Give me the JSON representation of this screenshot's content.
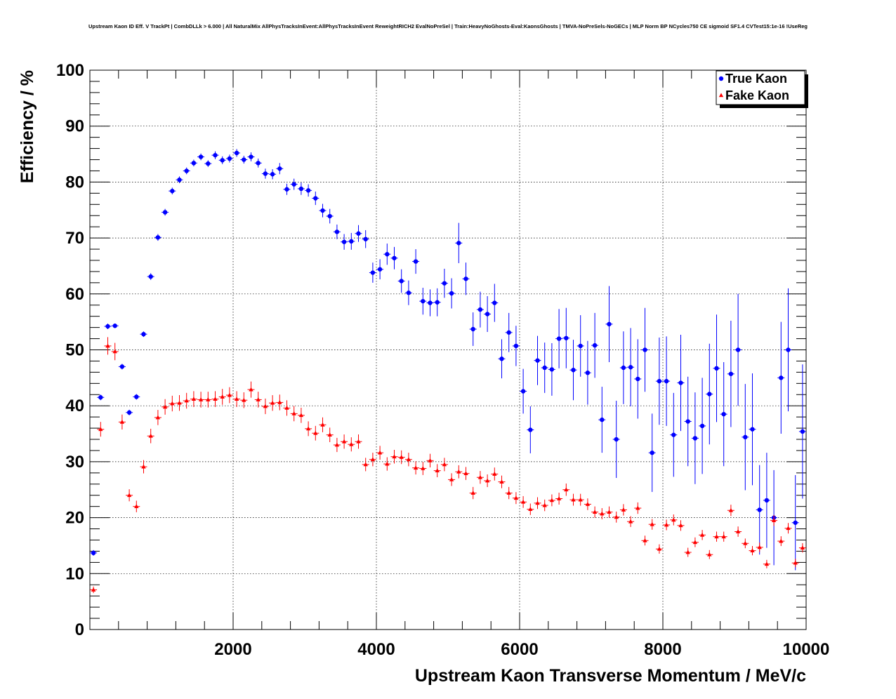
{
  "chart_data": {
    "type": "scatter",
    "title": "Upstream Kaon ID Eff. V TrackPt | CombDLLk > 6.000 | All NaturalMix AllPhysTracksInEvent:AllPhysTracksInEvent ReweightRICH2 EvalNoPreSel | Train:HeavyNoGhosts-Eval:KaonsGhosts | TMVA-NoPreSels-NoGECs | MLP Norm BP NCycles750 CE sigmoid SF1.4 CVTest15:1e-16 !UseReg",
    "xlabel": "Upstream Kaon Transverse Momentum / MeV/c",
    "ylabel": "Efficiency / %",
    "xlim": [
      0,
      10000
    ],
    "ylim": [
      0,
      100
    ],
    "x_ticks": [
      "2000",
      "4000",
      "6000",
      "8000",
      "10000"
    ],
    "y_ticks": [
      "0",
      "10",
      "20",
      "30",
      "40",
      "50",
      "60",
      "70",
      "80",
      "90",
      "100"
    ],
    "grid": true,
    "legend_position": "top-right",
    "series": [
      {
        "name": "True Kaon",
        "color": "#0000ff",
        "marker": "circle",
        "x": [
          50,
          150,
          250,
          350,
          450,
          550,
          650,
          750,
          850,
          950,
          1050,
          1150,
          1250,
          1350,
          1450,
          1550,
          1650,
          1750,
          1850,
          1950,
          2050,
          2150,
          2250,
          2350,
          2450,
          2550,
          2650,
          2750,
          2850,
          2950,
          3050,
          3150,
          3250,
          3350,
          3450,
          3550,
          3650,
          3750,
          3850,
          3950,
          4050,
          4150,
          4250,
          4350,
          4450,
          4550,
          4650,
          4750,
          4850,
          4950,
          5050,
          5150,
          5250,
          5350,
          5450,
          5550,
          5650,
          5750,
          5850,
          5950,
          6050,
          6150,
          6250,
          6350,
          6450,
          6550,
          6650,
          6750,
          6850,
          6950,
          7050,
          7150,
          7250,
          7350,
          7450,
          7550,
          7650,
          7750,
          7850,
          7950,
          8050,
          8150,
          8250,
          8350,
          8450,
          8550,
          8650,
          8750,
          8850,
          8950,
          9050,
          9150,
          9250,
          9350,
          9450,
          9550,
          9650,
          9750,
          9850,
          9950
        ],
        "y": [
          13.7,
          41.5,
          54.2,
          54.3,
          47.0,
          38.8,
          41.6,
          52.8,
          63.1,
          70.1,
          74.6,
          78.4,
          80.4,
          82.0,
          83.4,
          84.5,
          83.3,
          84.8,
          83.9,
          84.2,
          85.2,
          84.0,
          84.5,
          83.4,
          81.5,
          81.4,
          82.4,
          78.7,
          79.6,
          78.8,
          78.5,
          77.1,
          74.9,
          73.9,
          71.1,
          69.3,
          69.4,
          70.8,
          69.8,
          63.8,
          64.4,
          67.1,
          66.4,
          62.3,
          60.2,
          65.8,
          58.7,
          58.4,
          58.5,
          61.9,
          60.1,
          69.1,
          62.7,
          53.7,
          57.2,
          56.4,
          58.4,
          48.4,
          53.1,
          50.7,
          42.6,
          35.7,
          48.1,
          46.8,
          46.5,
          52.0,
          52.1,
          46.4,
          50.7,
          45.9,
          50.8,
          37.5,
          54.6,
          34.0,
          46.8,
          46.9,
          44.8,
          50.0,
          31.6,
          44.4,
          44.4,
          34.8,
          44.1,
          37.2,
          34.2,
          36.4,
          42.1,
          46.7,
          38.5,
          45.7,
          50.0,
          34.4,
          35.8,
          21.4,
          23.1,
          20.0,
          45.0,
          50.0,
          19.1,
          35.4
        ],
        "err": [
          0.5,
          0.5,
          0.5,
          0.4,
          0.5,
          0.5,
          0.5,
          0.5,
          0.6,
          0.6,
          0.6,
          0.6,
          0.6,
          0.6,
          0.6,
          0.6,
          0.6,
          0.7,
          0.7,
          0.7,
          0.7,
          0.7,
          0.8,
          0.8,
          0.9,
          0.9,
          1.0,
          1.0,
          1.0,
          1.1,
          1.1,
          1.2,
          1.2,
          1.3,
          1.3,
          1.4,
          1.5,
          1.5,
          1.6,
          1.8,
          1.8,
          1.9,
          2.0,
          2.1,
          2.2,
          2.2,
          2.4,
          2.4,
          2.5,
          2.6,
          2.7,
          3.6,
          2.9,
          3.0,
          3.2,
          3.2,
          3.4,
          3.5,
          3.5,
          3.6,
          4.0,
          4.2,
          4.4,
          4.5,
          4.7,
          5.3,
          5.4,
          5.4,
          5.5,
          5.7,
          5.8,
          5.9,
          6.8,
          6.9,
          6.5,
          7.0,
          7.1,
          7.5,
          7.0,
          7.8,
          8.0,
          7.5,
          8.6,
          8.0,
          8.2,
          8.6,
          9.0,
          9.6,
          9.3,
          9.5,
          10.0,
          9.5,
          10.0,
          8.0,
          8.5,
          8.5,
          10.0,
          11.0,
          8.5,
          12.0
        ]
      },
      {
        "name": "Fake Kaon",
        "color": "#ff0000",
        "marker": "triangle",
        "x": [
          50,
          150,
          250,
          350,
          450,
          550,
          650,
          750,
          850,
          950,
          1050,
          1150,
          1250,
          1350,
          1450,
          1550,
          1650,
          1750,
          1850,
          1950,
          2050,
          2150,
          2250,
          2350,
          2450,
          2550,
          2650,
          2750,
          2850,
          2950,
          3050,
          3150,
          3250,
          3350,
          3450,
          3550,
          3650,
          3750,
          3850,
          3950,
          4050,
          4150,
          4250,
          4350,
          4450,
          4550,
          4650,
          4750,
          4850,
          4950,
          5050,
          5150,
          5250,
          5350,
          5450,
          5550,
          5650,
          5750,
          5850,
          5950,
          6050,
          6150,
          6250,
          6350,
          6450,
          6550,
          6650,
          6750,
          6850,
          6950,
          7050,
          7150,
          7250,
          7350,
          7450,
          7550,
          7650,
          7750,
          7850,
          7950,
          8050,
          8150,
          8250,
          8350,
          8450,
          8550,
          8650,
          8750,
          8850,
          8950,
          9050,
          9150,
          9250,
          9350,
          9450,
          9550,
          9650,
          9750,
          9850,
          9950
        ],
        "y": [
          7.1,
          35.8,
          50.7,
          49.7,
          37.1,
          24.0,
          22.0,
          29.1,
          34.6,
          37.9,
          39.8,
          40.4,
          40.5,
          40.9,
          41.2,
          41.1,
          41.1,
          41.2,
          41.6,
          41.9,
          41.2,
          41.0,
          42.9,
          41.1,
          39.9,
          40.5,
          40.6,
          39.6,
          38.6,
          38.3,
          35.9,
          35.1,
          36.6,
          34.8,
          33.0,
          33.6,
          33.1,
          33.6,
          29.5,
          30.4,
          31.6,
          29.6,
          30.9,
          30.8,
          30.4,
          28.9,
          28.8,
          30.2,
          28.4,
          29.5,
          26.8,
          28.2,
          27.9,
          24.4,
          27.2,
          26.6,
          27.8,
          26.4,
          24.4,
          23.5,
          22.8,
          21.5,
          22.6,
          22.2,
          23.1,
          23.4,
          25.0,
          23.2,
          23.2,
          22.4,
          21.0,
          20.7,
          21.0,
          20.1,
          21.4,
          19.3,
          21.7,
          15.9,
          18.8,
          14.4,
          18.7,
          19.6,
          18.6,
          13.8,
          15.6,
          16.9,
          13.4,
          16.6,
          16.6,
          21.3,
          17.5,
          15.4,
          14.1,
          14.7,
          11.7,
          19.5,
          15.8,
          18.1,
          11.9,
          14.6
        ]
      }
    ]
  }
}
